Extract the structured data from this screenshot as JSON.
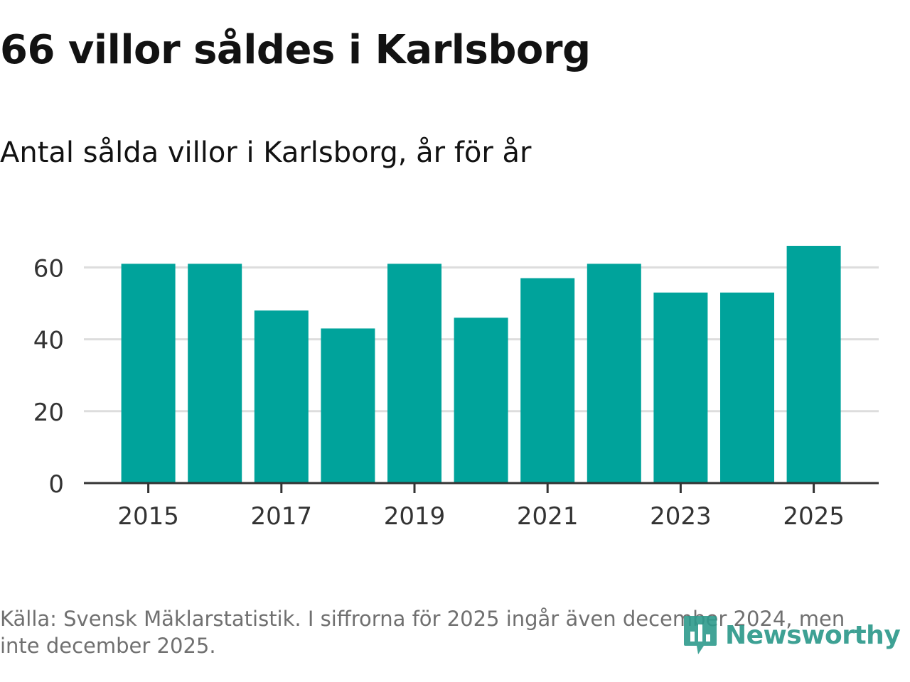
{
  "title": "66 villor såldes i Karlsborg",
  "subtitle": "Antal sålda villor i Karlsborg, år för år",
  "source": "Källa: Svensk Mäklarstatistik. I siffrorna för 2025 ingår även december 2024, men inte december 2025.",
  "logo": {
    "text": "Newsworthy",
    "icon": "newsworthy-chart-icon",
    "color": "#2e9a8c"
  },
  "colors": {
    "bar": "#00a39b",
    "grid": "#dddddd",
    "axis": "#333333",
    "text": "#333333"
  },
  "chart_data": {
    "type": "bar",
    "categories": [
      "2015",
      "2016",
      "2017",
      "2018",
      "2019",
      "2020",
      "2021",
      "2022",
      "2023",
      "2024",
      "2025"
    ],
    "values": [
      61,
      61,
      48,
      43,
      61,
      46,
      57,
      61,
      53,
      53,
      66
    ],
    "x_tick_labels": [
      "2015",
      "2017",
      "2019",
      "2021",
      "2023",
      "2025"
    ],
    "y_ticks": [
      0,
      20,
      40,
      60
    ],
    "ylim": [
      0,
      66
    ],
    "xlabel": "",
    "ylabel": "",
    "grid": true,
    "legend": "none"
  }
}
